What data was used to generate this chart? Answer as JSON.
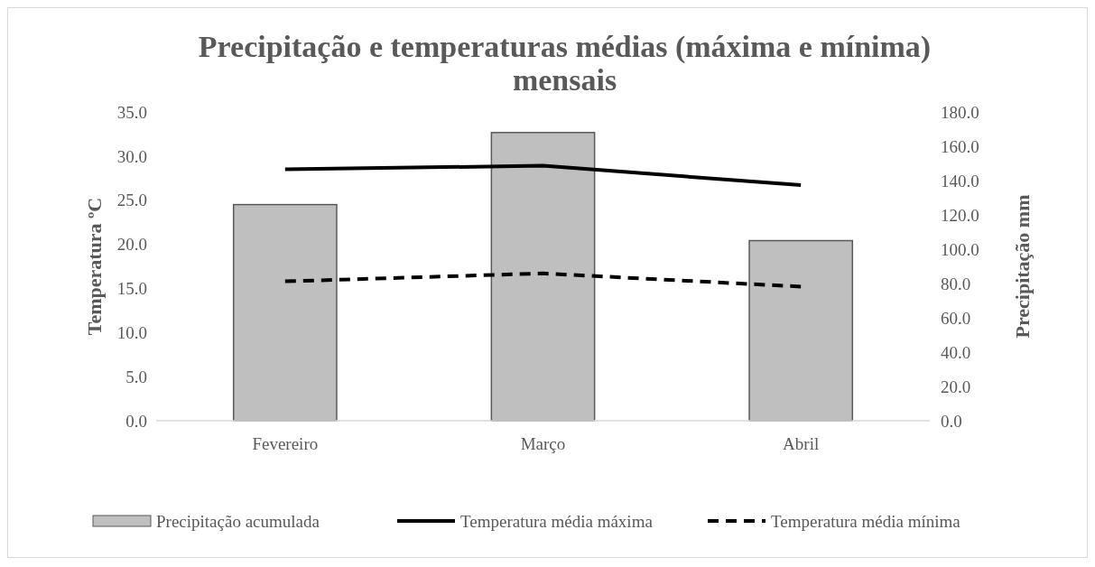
{
  "chart_data": {
    "type": "bar",
    "title": "Precipitação e temperaturas médias (máxima e mínima) mensais",
    "ylabel": "Temperatura ºC",
    "y2label": "Precipitação mm",
    "categories": [
      "Fevereiro",
      "Março",
      "Abril"
    ],
    "series": [
      {
        "name": "Precipitação acumulada",
        "axis": "y2",
        "color": "#bfbfbf",
        "values": [
          126,
          168,
          105
        ]
      },
      {
        "name": "Temperatura média máxima",
        "type": "line",
        "color": "#000000",
        "line_style": "solid",
        "values": [
          28.5,
          28.9,
          26.7
        ]
      },
      {
        "name": "Temperatura média mínima",
        "type": "line",
        "color": "#000000",
        "line_style": "dashed",
        "values": [
          15.8,
          16.7,
          15.2
        ]
      }
    ],
    "ylim": [
      0,
      35
    ],
    "yticks": [
      {
        "value": 0,
        "label": "0.0"
      },
      {
        "value": 5,
        "label": "5.0"
      },
      {
        "value": 10,
        "label": "10.0"
      },
      {
        "value": 15,
        "label": "15.0"
      },
      {
        "value": 20,
        "label": "20.0"
      },
      {
        "value": 25,
        "label": "25.0"
      },
      {
        "value": 30,
        "label": "30.0"
      },
      {
        "value": 35,
        "label": "35.0"
      }
    ],
    "y2lim": [
      0,
      180
    ],
    "y2ticks": [
      {
        "value": 0,
        "label": "0.0"
      },
      {
        "value": 20,
        "label": "20.0"
      },
      {
        "value": 40,
        "label": "40.0"
      },
      {
        "value": 60,
        "label": "60.0"
      },
      {
        "value": 80,
        "label": "80.0"
      },
      {
        "value": 100,
        "label": "100.0"
      },
      {
        "value": 120,
        "label": "120.0"
      },
      {
        "value": 140,
        "label": "140.0"
      },
      {
        "value": 160,
        "label": "160.0"
      },
      {
        "value": 180,
        "label": "180.0"
      }
    ],
    "grid": false,
    "legend": "bottom"
  }
}
